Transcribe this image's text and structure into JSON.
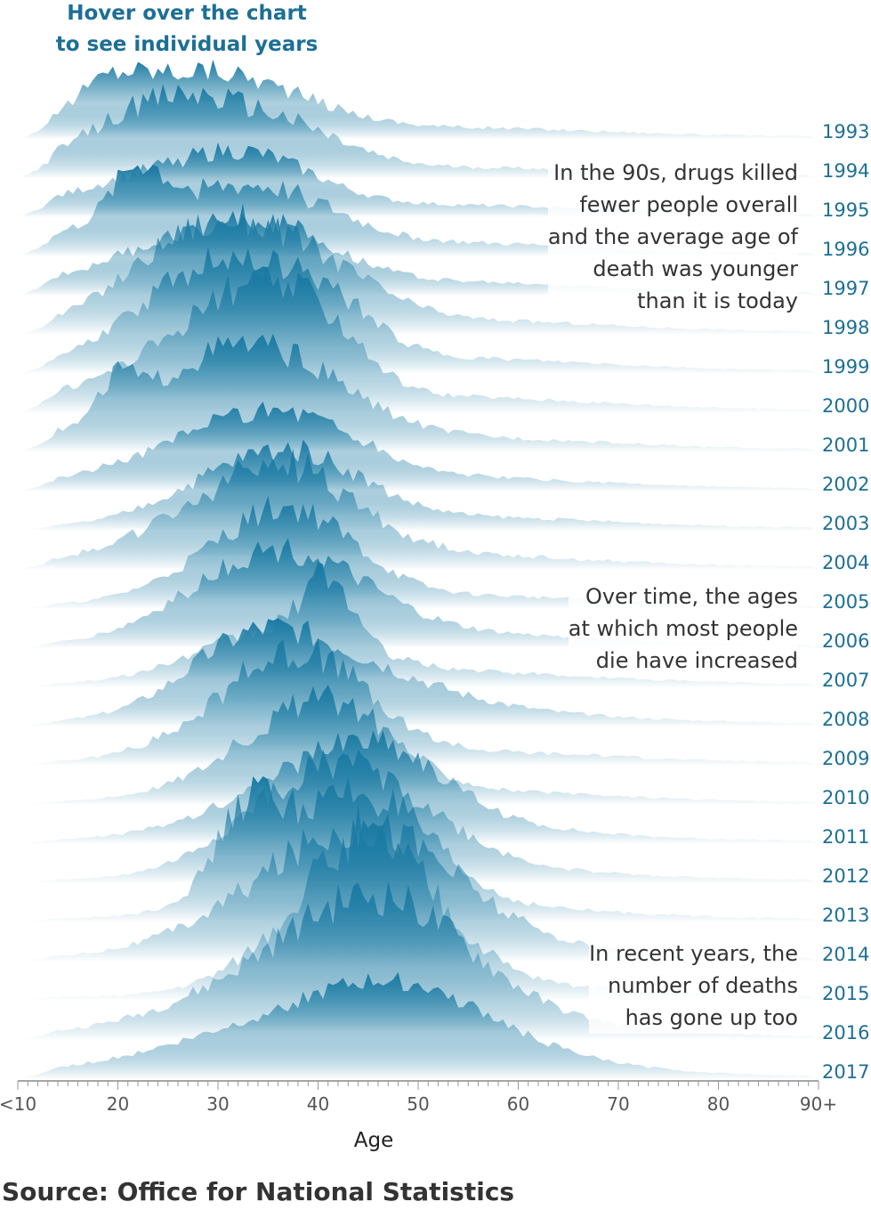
{
  "hint": {
    "line1": "Hover over the chart",
    "line2": "to see individual years"
  },
  "colors": {
    "accent": "#1a7aa3",
    "year_label": "#1d6f95",
    "fade": "#ffffff"
  },
  "chart_data": {
    "type": "area",
    "kind": "ridgeline",
    "xlabel": "Age",
    "xlim": [
      10,
      90
    ],
    "tick_labels": [
      "<10",
      "20",
      "30",
      "40",
      "50",
      "60",
      "70",
      "80",
      "90+"
    ],
    "tick_values": [
      10,
      20,
      30,
      40,
      50,
      60,
      70,
      80,
      90
    ],
    "minor_tick_step": 1,
    "series": [
      {
        "name": "1993",
        "peaks": [
          [
            25,
            1.0,
            4
          ],
          [
            19,
            0.5,
            1.5
          ],
          [
            34,
            0.65,
            4
          ]
        ],
        "total": 0.72,
        "noise": 0.35
      },
      {
        "name": "1994",
        "peaks": [
          [
            23,
            0.9,
            3.5
          ],
          [
            29,
            0.9,
            4
          ],
          [
            38,
            0.5,
            3
          ]
        ],
        "total": 0.72,
        "noise": 0.35
      },
      {
        "name": "1995",
        "peaks": [
          [
            27,
            0.9,
            5
          ],
          [
            34,
            0.5,
            3
          ]
        ],
        "total": 0.76,
        "noise": 0.3
      },
      {
        "name": "1996",
        "peaks": [
          [
            28,
            1.0,
            5
          ],
          [
            22,
            0.8,
            1.2
          ],
          [
            37,
            0.4,
            3
          ]
        ],
        "total": 0.85,
        "noise": 0.35
      },
      {
        "name": "1997",
        "peaks": [
          [
            29,
            1.0,
            5
          ],
          [
            36,
            0.45,
            3
          ]
        ],
        "total": 0.84,
        "noise": 0.3
      },
      {
        "name": "1998",
        "peaks": [
          [
            28,
            0.9,
            4
          ],
          [
            32,
            0.9,
            4
          ],
          [
            42,
            0.4,
            3
          ]
        ],
        "total": 0.95,
        "noise": 0.3
      },
      {
        "name": "1999",
        "peaks": [
          [
            28,
            0.9,
            4
          ],
          [
            34,
            1.0,
            4
          ],
          [
            42,
            0.35,
            2
          ]
        ],
        "total": 0.97,
        "noise": 0.3
      },
      {
        "name": "2000",
        "peaks": [
          [
            29,
            0.9,
            5
          ],
          [
            34,
            1.0,
            3
          ],
          [
            41,
            0.5,
            2
          ]
        ],
        "total": 1.0,
        "noise": 0.3
      },
      {
        "name": "2001",
        "peaks": [
          [
            29,
            0.85,
            5
          ],
          [
            35,
            0.9,
            4
          ],
          [
            20,
            0.6,
            0.8
          ]
        ],
        "total": 0.95,
        "noise": 0.3
      },
      {
        "name": "2002",
        "peaks": [
          [
            32,
            1.0,
            5
          ],
          [
            38,
            0.5,
            3
          ]
        ],
        "total": 0.86,
        "noise": 0.3
      },
      {
        "name": "2003",
        "peaks": [
          [
            34,
            1.0,
            4
          ],
          [
            40,
            0.4,
            3
          ]
        ],
        "total": 0.9,
        "noise": 0.3
      },
      {
        "name": "2004",
        "peaks": [
          [
            33,
            1.0,
            5
          ],
          [
            37,
            0.8,
            3
          ]
        ],
        "total": 0.9,
        "noise": 0.35
      },
      {
        "name": "2005",
        "peaks": [
          [
            34,
            0.9,
            4
          ],
          [
            38,
            0.85,
            3
          ]
        ],
        "total": 0.88,
        "noise": 0.3
      },
      {
        "name": "2006",
        "peaks": [
          [
            33,
            0.9,
            4
          ],
          [
            39,
            0.8,
            4
          ]
        ],
        "total": 0.9,
        "noise": 0.3
      },
      {
        "name": "2007",
        "peaks": [
          [
            36,
            0.8,
            4
          ],
          [
            41,
            1.0,
            1.2
          ]
        ],
        "total": 0.97,
        "noise": 0.3
      },
      {
        "name": "2008",
        "peaks": [
          [
            39,
            1.0,
            5
          ],
          [
            33,
            0.6,
            3
          ]
        ],
        "total": 0.96,
        "noise": 0.3
      },
      {
        "name": "2009",
        "peaks": [
          [
            35,
            0.9,
            4
          ],
          [
            39,
            0.95,
            3
          ]
        ],
        "total": 0.95,
        "noise": 0.35
      },
      {
        "name": "2010",
        "peaks": [
          [
            37,
            0.9,
            4
          ],
          [
            42,
            0.9,
            3
          ]
        ],
        "total": 0.9,
        "noise": 0.3
      },
      {
        "name": "2011",
        "peaks": [
          [
            41,
            1.0,
            5
          ],
          [
            46,
            0.7,
            3
          ]
        ],
        "total": 0.92,
        "noise": 0.3
      },
      {
        "name": "2012",
        "peaks": [
          [
            39,
            1.0,
            4
          ],
          [
            45,
            0.9,
            4
          ]
        ],
        "total": 0.96,
        "noise": 0.3
      },
      {
        "name": "2013",
        "peaks": [
          [
            33,
            1.0,
            1.5
          ],
          [
            40,
            1.0,
            4
          ],
          [
            46,
            0.9,
            3
          ]
        ],
        "total": 1.05,
        "noise": 0.35
      },
      {
        "name": "2014",
        "peaks": [
          [
            40,
            1.0,
            5
          ],
          [
            47,
            0.9,
            4
          ]
        ],
        "total": 1.1,
        "noise": 0.35
      },
      {
        "name": "2015",
        "peaks": [
          [
            43,
            1.0,
            4
          ],
          [
            46,
            1.0,
            3
          ]
        ],
        "total": 1.18,
        "noise": 0.35
      },
      {
        "name": "2016",
        "peaks": [
          [
            41,
            1.0,
            6
          ],
          [
            47,
            0.9,
            4
          ]
        ],
        "total": 1.12,
        "noise": 0.3
      },
      {
        "name": "2017",
        "peaks": [
          [
            41,
            1.0,
            7
          ],
          [
            49,
            0.6,
            4
          ]
        ],
        "total": 0.9,
        "noise": 0.2
      }
    ]
  },
  "annotations": [
    {
      "lines": [
        "In the 90s, drugs killed",
        "fewer people overall",
        "and the average age of",
        "death was younger",
        "than it is today"
      ]
    },
    {
      "lines": [
        "Over time, the ages",
        "at which most people",
        "die have increased"
      ]
    },
    {
      "lines": [
        "In recent years, the",
        "number of deaths",
        "has gone up too"
      ]
    }
  ],
  "source": "Source: Office for National Statistics"
}
